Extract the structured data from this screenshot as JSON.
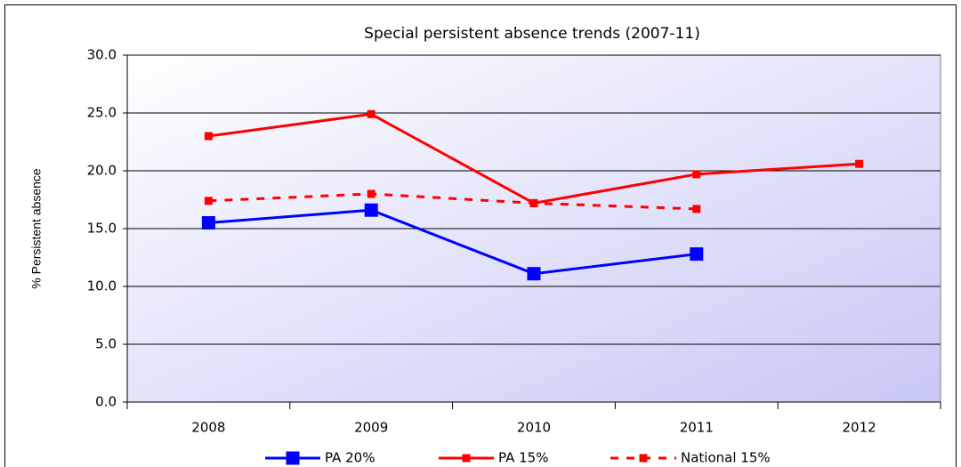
{
  "chart_data": {
    "type": "line",
    "title": "Special persistent absence trends (2007-11)",
    "y_label": "% Persistent absence",
    "categories": [
      "2008",
      "2009",
      "2010",
      "2011",
      "2012"
    ],
    "series": [
      {
        "name": "PA 20%",
        "color": "#0000ff",
        "values": [
          15.5,
          16.6,
          11.1,
          12.8,
          null
        ]
      },
      {
        "name": "PA 15%",
        "color": "#ff0000",
        "values": [
          23.0,
          24.9,
          17.2,
          19.7,
          20.6
        ]
      },
      {
        "name": "National 15%",
        "color": "#ff0000",
        "dashed": true,
        "values": [
          17.4,
          18.0,
          17.2,
          16.7,
          null
        ]
      }
    ],
    "ylim": [
      0,
      30
    ],
    "yticks": [
      {
        "value": 0,
        "label": "0.0"
      },
      {
        "value": 5,
        "label": "5.0"
      },
      {
        "value": 10,
        "label": "10.0"
      },
      {
        "value": 15,
        "label": "15.0"
      },
      {
        "value": 20,
        "label": "20.0"
      },
      {
        "value": 25,
        "label": "25.0"
      },
      {
        "value": 30,
        "label": "30.0"
      }
    ],
    "grid": true,
    "legend": "bottom"
  }
}
